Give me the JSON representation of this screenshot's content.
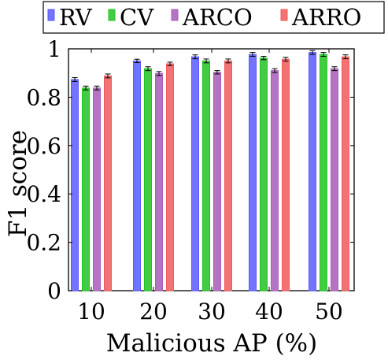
{
  "chart_data": {
    "type": "bar",
    "title": "",
    "xlabel": "Malicious AP (%)",
    "ylabel": "F1 score",
    "categories": [
      "10",
      "20",
      "30",
      "40",
      "50"
    ],
    "ylim": [
      0,
      1
    ],
    "yticks": [
      "0",
      "0.2",
      "0.4",
      "0.6",
      "0.8",
      "1"
    ],
    "error_bars": true,
    "legend_position": "top",
    "series": [
      {
        "name": "RV",
        "color": "#5a5aff",
        "values": [
          0.873,
          0.95,
          0.967,
          0.977,
          0.985
        ],
        "errors": [
          0.008,
          0.007,
          0.008,
          0.008,
          0.008
        ]
      },
      {
        "name": "CV",
        "color": "#22c322",
        "values": [
          0.838,
          0.918,
          0.95,
          0.962,
          0.977
        ],
        "errors": [
          0.008,
          0.008,
          0.008,
          0.007,
          0.008
        ]
      },
      {
        "name": "ARCO",
        "color": "#a85cb8",
        "values": [
          0.838,
          0.898,
          0.903,
          0.91,
          0.918
        ],
        "errors": [
          0.008,
          0.008,
          0.007,
          0.008,
          0.008
        ]
      },
      {
        "name": "ARRO",
        "color": "#f05a5a",
        "values": [
          0.888,
          0.938,
          0.95,
          0.957,
          0.967
        ],
        "errors": [
          0.008,
          0.007,
          0.008,
          0.008,
          0.008
        ]
      }
    ]
  }
}
